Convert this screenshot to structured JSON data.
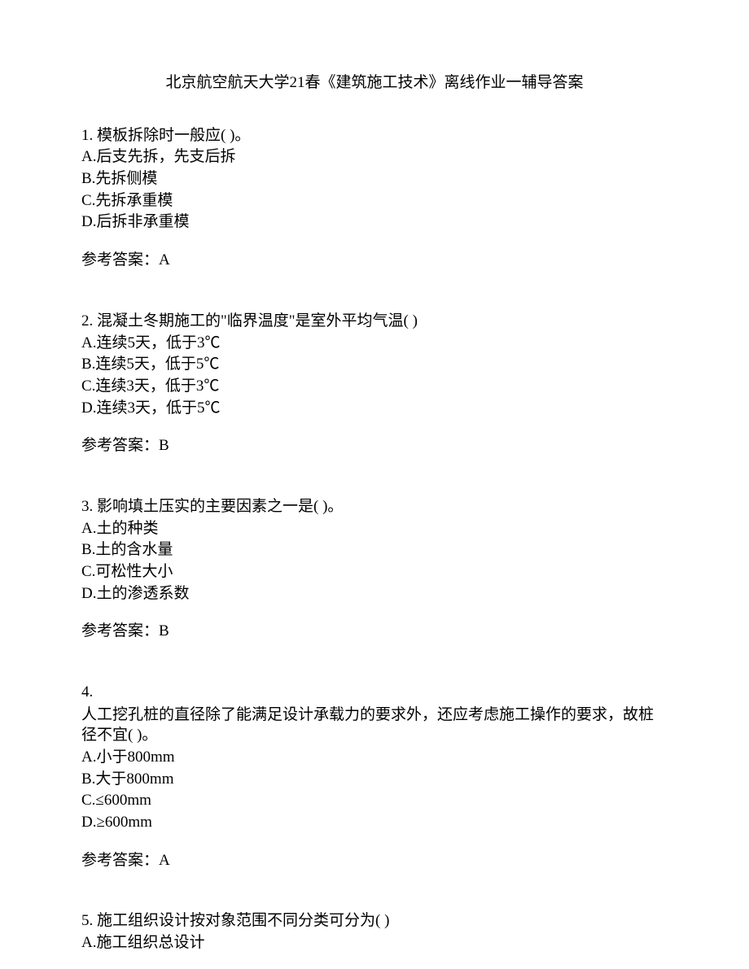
{
  "title": "北京航空航天大学21春《建筑施工技术》离线作业一辅导答案",
  "questions": [
    {
      "number": "1.",
      "text": "模板拆除时一般应(  )。",
      "options": [
        "A.后支先拆，先支后拆",
        "B.先拆侧模",
        "C.先拆承重模",
        "D.后拆非承重模"
      ],
      "answer": "参考答案：A"
    },
    {
      "number": "2.",
      "text": "混凝土冬期施工的\"临界温度\"是室外平均气温(  )",
      "options": [
        "A.连续5天，低于3℃",
        "B.连续5天，低于5℃",
        "C.连续3天，低于3℃",
        "D.连续3天，低于5℃"
      ],
      "answer": "参考答案：B"
    },
    {
      "number": "3.",
      "text": "影响填土压实的主要因素之一是(  )。",
      "options": [
        "A.土的种类",
        "B.土的含水量",
        "C.可松性大小",
        "D.土的渗透系数"
      ],
      "answer": "参考答案：B"
    },
    {
      "number": "4.",
      "text": "人工挖孔桩的直径除了能满足设计承载力的要求外，还应考虑施工操作的要求，故桩径不宜(  )。",
      "multiline": true,
      "options": [
        "A.小于800mm",
        "B.大于800mm",
        "C.≤600mm",
        "D.≥600mm"
      ],
      "answer": "参考答案：A"
    },
    {
      "number": "5.",
      "text": "施工组织设计按对象范围不同分类可分为(  )",
      "options": [
        "A.施工组织总设计"
      ],
      "answer": null
    }
  ]
}
